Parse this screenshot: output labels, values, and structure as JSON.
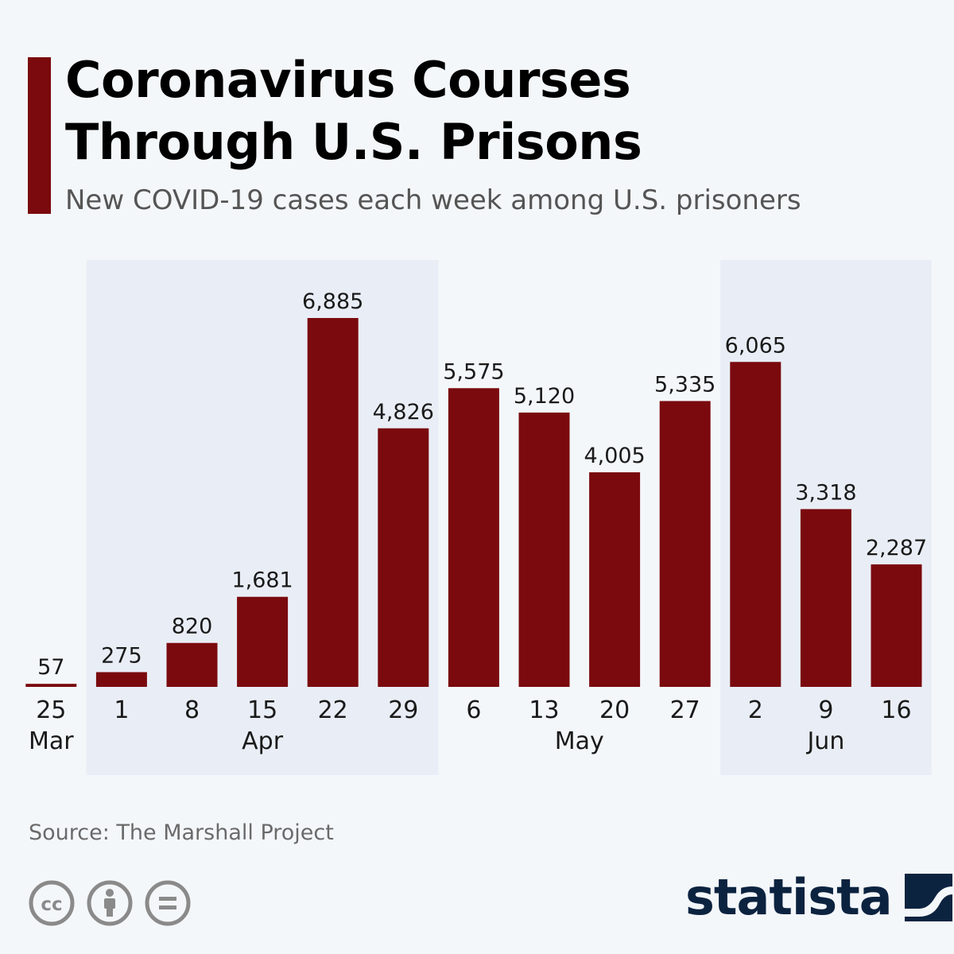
{
  "header": {
    "title_line1": "Coronavirus Courses",
    "title_line2": "Through U.S. Prisons",
    "subtitle": "New COVID-19 cases each week among U.S. prisoners"
  },
  "chart_data": {
    "type": "bar",
    "title": "Coronavirus Courses Through U.S. Prisons",
    "subtitle": "New COVID-19 cases each week among U.S. prisoners",
    "xlabel": "",
    "ylabel": "",
    "ylim": [
      0,
      7000
    ],
    "grid": false,
    "categories": [
      "25",
      "1",
      "8",
      "15",
      "22",
      "29",
      "6",
      "13",
      "20",
      "27",
      "2",
      "9",
      "16"
    ],
    "values": [
      57,
      275,
      820,
      1681,
      6885,
      4826,
      5575,
      5120,
      4005,
      5335,
      6065,
      3318,
      2287
    ],
    "value_labels": [
      "57",
      "275",
      "820",
      "1,681",
      "6,885",
      "4,826",
      "5,575",
      "5,120",
      "4,005",
      "5,335",
      "6,065",
      "3,318",
      "2,287"
    ],
    "months": [
      {
        "label": "Mar",
        "start": 0,
        "end": 0,
        "shaded": false
      },
      {
        "label": "Apr",
        "start": 1,
        "end": 5,
        "shaded": true
      },
      {
        "label": "May",
        "start": 6,
        "end": 9,
        "shaded": false
      },
      {
        "label": "Jun",
        "start": 10,
        "end": 12,
        "shaded": true
      }
    ]
  },
  "footer": {
    "source": "Source: The Marshall Project",
    "license_icons": [
      "cc-icon",
      "attribution-icon",
      "no-derivatives-icon"
    ],
    "brand": "statista"
  },
  "colors": {
    "bar": "#7a0a0e",
    "accent": "#7a0a0e",
    "band": "#e9eef6",
    "background": "#f4f7fa",
    "brand": "#0c2340"
  }
}
